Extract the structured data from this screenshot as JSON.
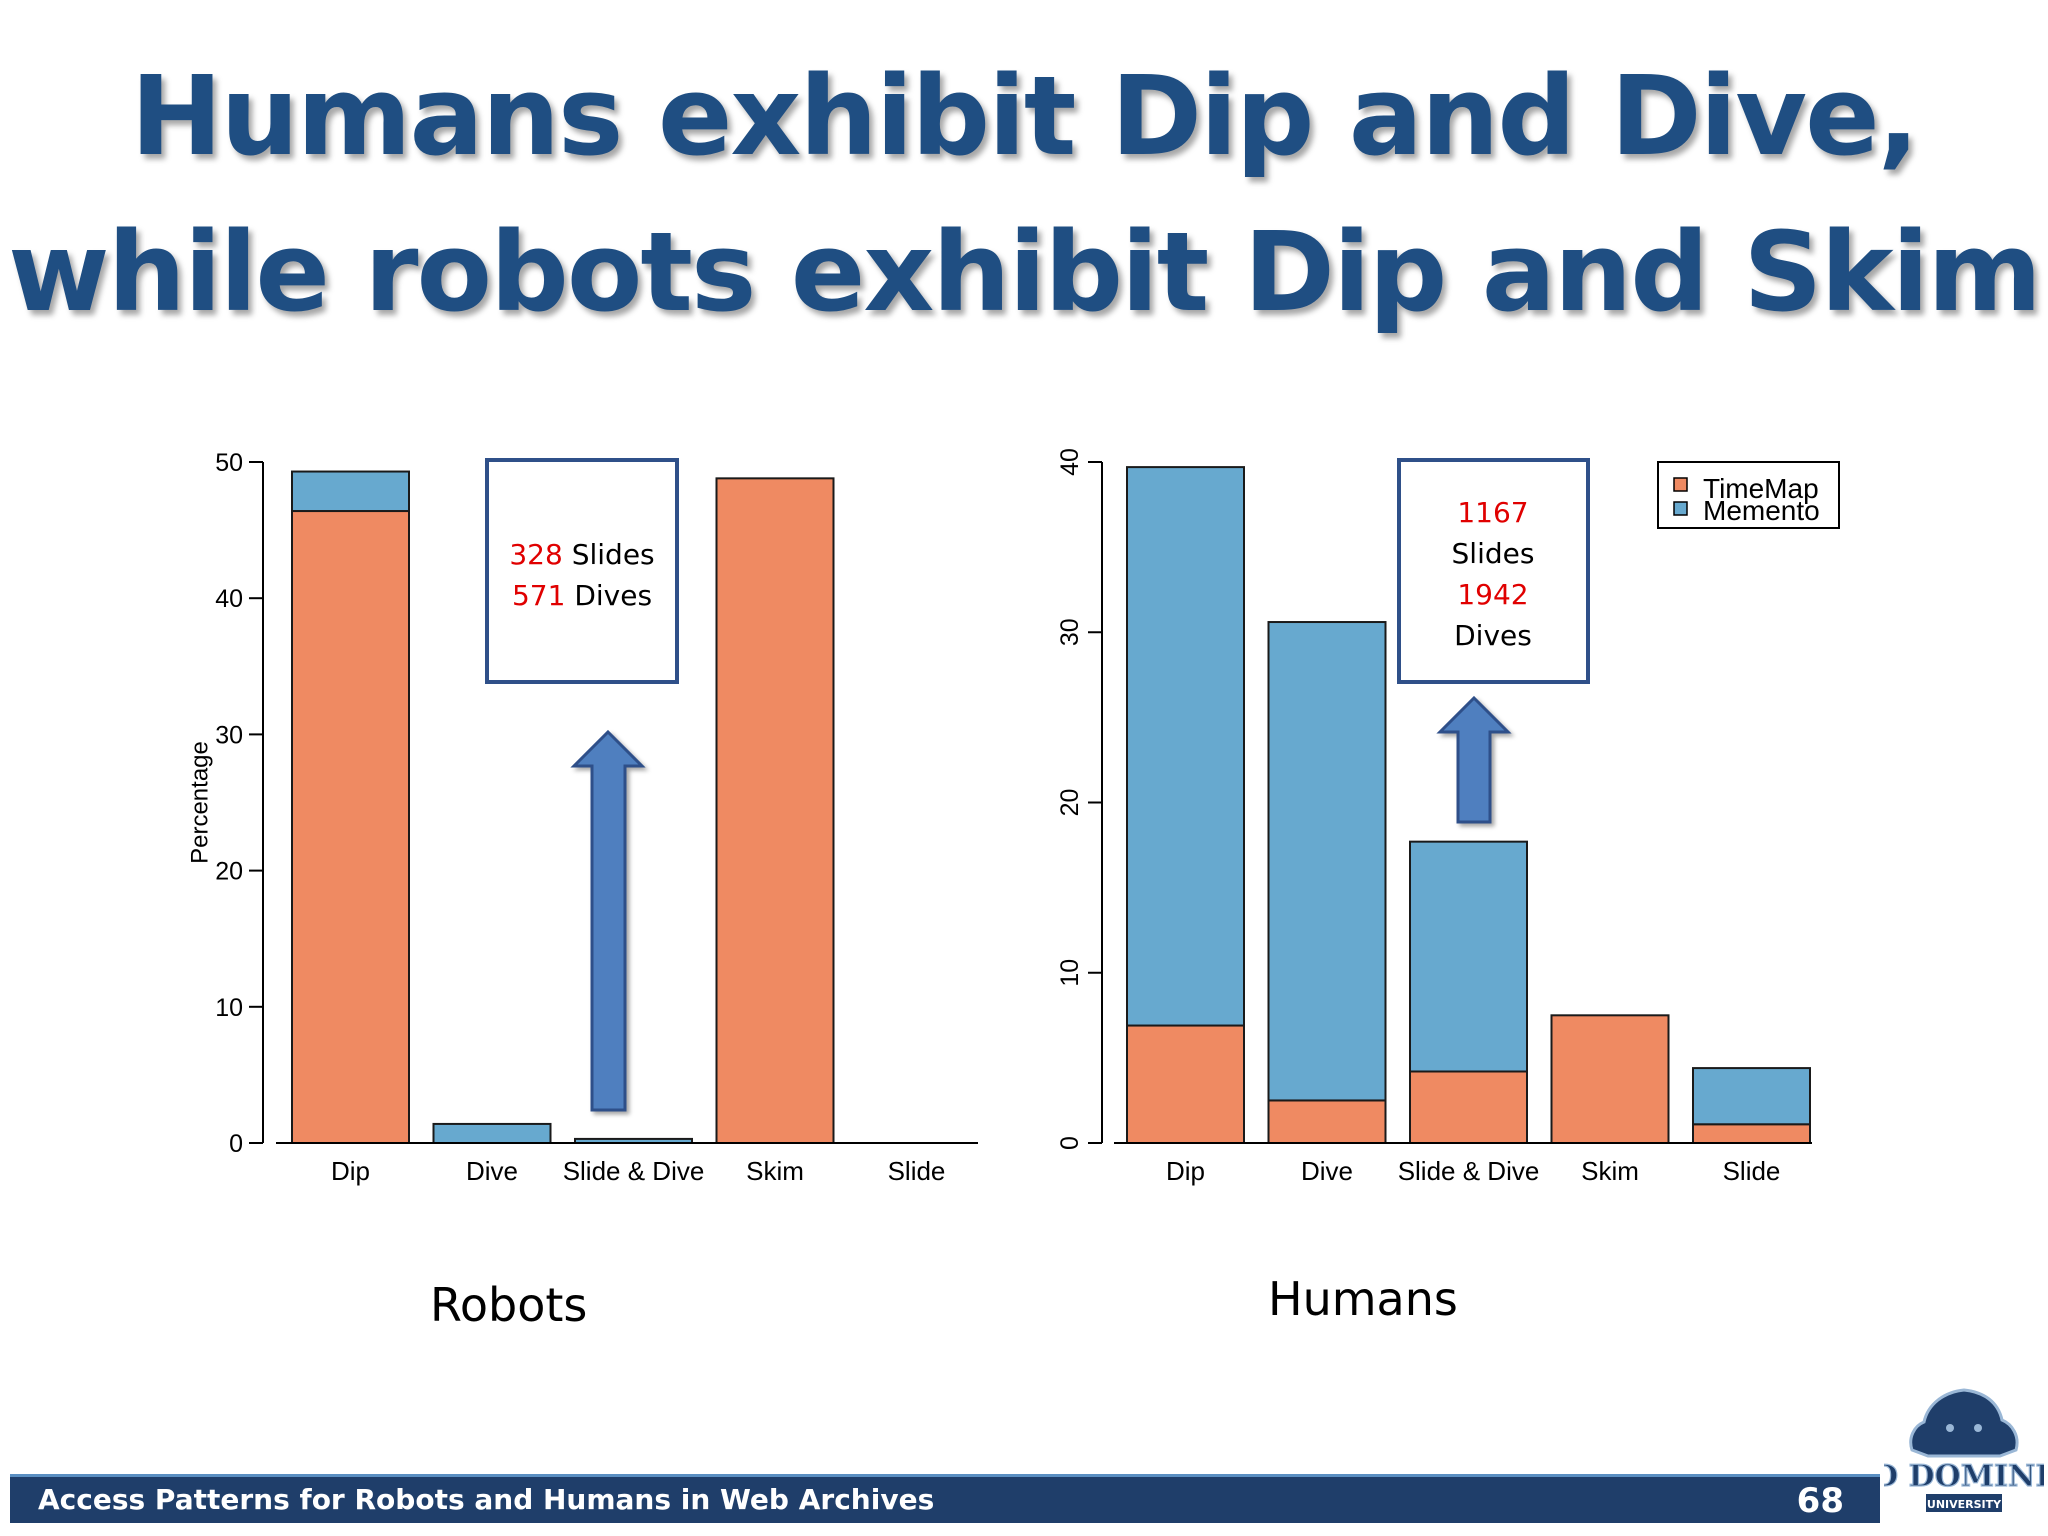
{
  "slide": {
    "title_line1": "Humans exhibit Dip and Dive,",
    "title_line2": "while robots exhibit Dip and Skim",
    "footer": "Access Patterns for Robots and Humans in Web Archives",
    "page_number": "68",
    "logo_text": "OLD DOMINION",
    "logo_subtext": "UNIVERSITY"
  },
  "colors": {
    "title": "#1f4e82",
    "timemap": "#ef8a62",
    "memento": "#67a9cf",
    "callout_border": "#2f5089",
    "arrow": "#4f7fbf",
    "highlight": "#e00000"
  },
  "chart_data": [
    {
      "type": "bar",
      "stacked": true,
      "panel_label": "Robots",
      "ylabel": "Percentage",
      "ylim": [
        0,
        50
      ],
      "yticks": [
        "0",
        "10",
        "20",
        "30",
        "40",
        "50"
      ],
      "categories": [
        "Dip",
        "Dive",
        "Slide & Dive",
        "Skim",
        "Slide"
      ],
      "series": [
        {
          "name": "TimeMap",
          "color": "#ef8a62",
          "values": [
            46.4,
            0,
            0,
            48.8,
            0
          ]
        },
        {
          "name": "Memento",
          "color": "#67a9cf",
          "values": [
            2.9,
            1.4,
            0.3,
            0,
            0
          ]
        }
      ],
      "callout": {
        "slides_count": "328",
        "slides_word": "Slides",
        "dives_count": "571",
        "dives_word": "Dives"
      }
    },
    {
      "type": "bar",
      "stacked": true,
      "panel_label": "Humans",
      "ylabel": "",
      "ylim": [
        0,
        40
      ],
      "yticks": [
        "0",
        "10",
        "20",
        "30",
        "40"
      ],
      "categories": [
        "Dip",
        "Dive",
        "Slide & Dive",
        "Skim",
        "Slide"
      ],
      "legend": [
        "TimeMap",
        "Memento"
      ],
      "legend_position": "top-right",
      "series": [
        {
          "name": "TimeMap",
          "color": "#ef8a62",
          "values": [
            6.9,
            2.5,
            4.2,
            7.5,
            1.1
          ]
        },
        {
          "name": "Memento",
          "color": "#67a9cf",
          "values": [
            32.8,
            28.1,
            13.5,
            0,
            3.3
          ]
        }
      ],
      "callout": {
        "slides_count": "1167",
        "slides_word": "Slides",
        "dives_count": "1942",
        "dives_word": "Dives"
      }
    }
  ]
}
